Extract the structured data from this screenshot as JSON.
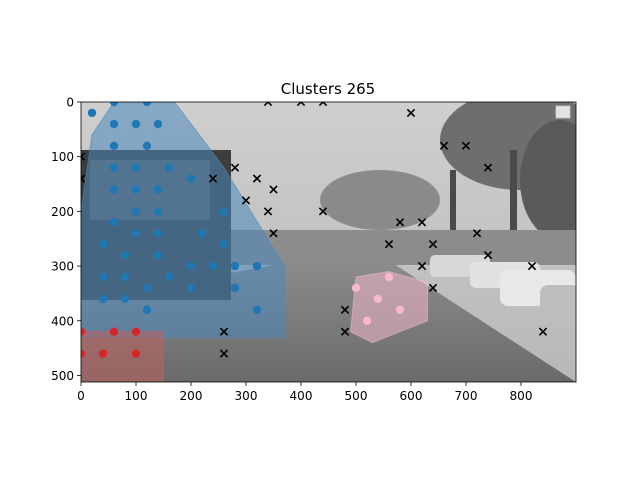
{
  "chart_data": {
    "type": "scatter",
    "title": "Clusters 265",
    "xlabel": "",
    "ylabel": "",
    "xlim": [
      0,
      900
    ],
    "ylim": [
      512,
      0
    ],
    "y_inverted": true,
    "background": "grayscale street photograph of a parking lot with trees and cars",
    "grid": false,
    "legend": "top-right (empty)",
    "x_ticks": [
      0,
      100,
      200,
      300,
      400,
      500,
      600,
      700,
      800
    ],
    "y_ticks": [
      0,
      100,
      200,
      300,
      400,
      500
    ],
    "colors": {
      "blue": "#1f77b4",
      "blue_hull": "#4a89bd",
      "red": "#d62728",
      "red_hull": "#c0605f",
      "pink": "#f7b6d2",
      "pink_hull": "#f1b6cb",
      "noise": "#000000"
    },
    "series": [
      {
        "name": "",
        "color": "blue",
        "marker": "circle",
        "points": [
          [
            20,
            20
          ],
          [
            60,
            0
          ],
          [
            120,
            0
          ],
          [
            60,
            40
          ],
          [
            100,
            40
          ],
          [
            140,
            40
          ],
          [
            60,
            80
          ],
          [
            120,
            80
          ],
          [
            60,
            120
          ],
          [
            100,
            120
          ],
          [
            160,
            120
          ],
          [
            60,
            160
          ],
          [
            100,
            160
          ],
          [
            140,
            160
          ],
          [
            200,
            140
          ],
          [
            60,
            220
          ],
          [
            100,
            200
          ],
          [
            140,
            200
          ],
          [
            260,
            200
          ],
          [
            40,
            260
          ],
          [
            100,
            240
          ],
          [
            140,
            240
          ],
          [
            220,
            240
          ],
          [
            80,
            280
          ],
          [
            140,
            280
          ],
          [
            260,
            260
          ],
          [
            40,
            320
          ],
          [
            80,
            320
          ],
          [
            160,
            320
          ],
          [
            200,
            300
          ],
          [
            240,
            300
          ],
          [
            280,
            300
          ],
          [
            320,
            300
          ],
          [
            40,
            360
          ],
          [
            80,
            360
          ],
          [
            120,
            340
          ],
          [
            200,
            340
          ],
          [
            280,
            340
          ],
          [
            120,
            380
          ],
          [
            320,
            380
          ]
        ],
        "hull": [
          [
            0,
            420
          ],
          [
            0,
            200
          ],
          [
            20,
            60
          ],
          [
            60,
            0
          ],
          [
            170,
            0
          ],
          [
            260,
            120
          ],
          [
            370,
            300
          ],
          [
            370,
            430
          ],
          [
            0,
            430
          ]
        ]
      },
      {
        "name": "",
        "color": "red",
        "marker": "circle",
        "points": [
          [
            0,
            420
          ],
          [
            60,
            420
          ],
          [
            100,
            420
          ],
          [
            0,
            460
          ],
          [
            40,
            460
          ],
          [
            100,
            460
          ]
        ],
        "hull": [
          [
            0,
            420
          ],
          [
            150,
            420
          ],
          [
            150,
            512
          ],
          [
            0,
            512
          ]
        ]
      },
      {
        "name": "",
        "color": "pink",
        "marker": "circle",
        "points": [
          [
            500,
            340
          ],
          [
            540,
            360
          ],
          [
            560,
            320
          ],
          [
            580,
            380
          ],
          [
            520,
            400
          ]
        ],
        "hull": [
          [
            500,
            320
          ],
          [
            560,
            310
          ],
          [
            630,
            330
          ],
          [
            630,
            400
          ],
          [
            530,
            440
          ],
          [
            490,
            420
          ]
        ]
      },
      {
        "name": "",
        "color": "noise",
        "marker": "x",
        "points": [
          [
            340,
            0
          ],
          [
            400,
            0
          ],
          [
            440,
            0
          ],
          [
            600,
            20
          ],
          [
            660,
            80
          ],
          [
            700,
            80
          ],
          [
            740,
            120
          ],
          [
            0,
            100
          ],
          [
            0,
            140
          ],
          [
            240,
            140
          ],
          [
            280,
            120
          ],
          [
            320,
            140
          ],
          [
            350,
            160
          ],
          [
            300,
            180
          ],
          [
            340,
            200
          ],
          [
            440,
            200
          ],
          [
            580,
            220
          ],
          [
            620,
            220
          ],
          [
            350,
            240
          ],
          [
            720,
            240
          ],
          [
            560,
            260
          ],
          [
            640,
            260
          ],
          [
            740,
            280
          ],
          [
            620,
            300
          ],
          [
            820,
            300
          ],
          [
            640,
            340
          ],
          [
            480,
            380
          ],
          [
            260,
            420
          ],
          [
            480,
            420
          ],
          [
            840,
            420
          ],
          [
            260,
            460
          ]
        ]
      }
    ]
  }
}
